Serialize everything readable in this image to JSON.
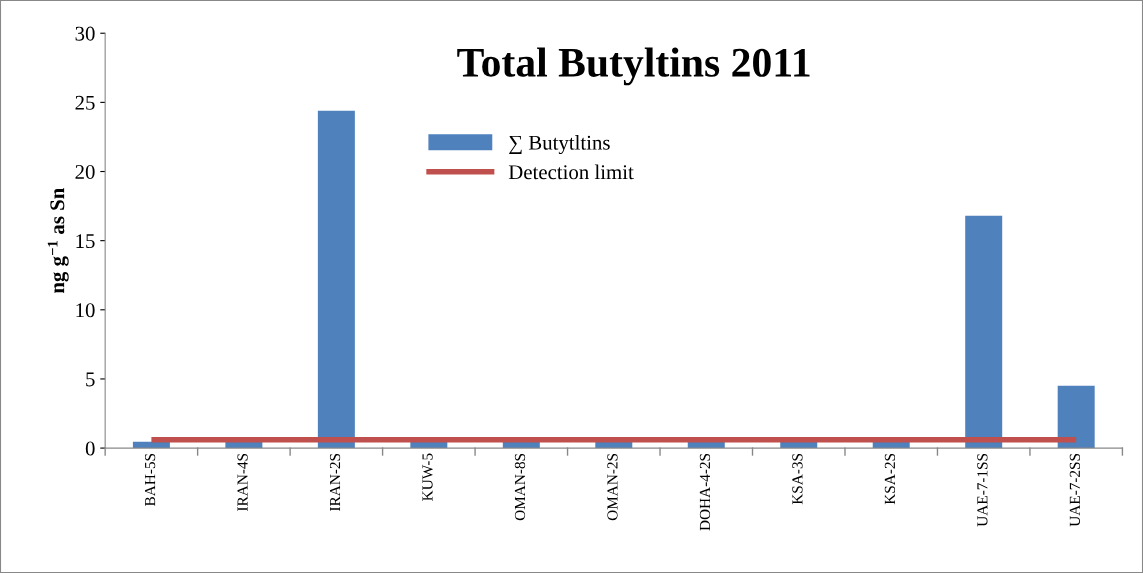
{
  "chart_data": {
    "type": "bar",
    "title": "Total Butyltins 2011",
    "ylabel": "ng g$^{−1}$ as Sn",
    "categories": [
      "BAH-5S",
      "IRAN-4S",
      "IRAN-2S",
      "KUW-5",
      "OMAN-8S",
      "OMAN-2S",
      "DOHA-4-2S",
      "KSA-3S",
      "KSA-2S",
      "UAE-7-1SS",
      "UAE-7-2SS"
    ],
    "series": [
      {
        "name": "∑ Butytltins",
        "color": "#4f81bd",
        "values": [
          0.45,
          0.55,
          24.4,
          0.55,
          0.55,
          0.55,
          0.55,
          0.55,
          0.55,
          16.8,
          4.5
        ]
      },
      {
        "name": "Detection limit",
        "type": "line",
        "color": "#c0504d",
        "values": [
          0.6,
          0.6,
          0.6,
          0.6,
          0.6,
          0.6,
          0.6,
          0.6,
          0.6,
          0.6,
          0.6
        ]
      }
    ],
    "ylim": [
      0,
      30
    ],
    "yticks": [
      0,
      5,
      10,
      15,
      20,
      25,
      30
    ],
    "grid": false,
    "legend": "top"
  }
}
